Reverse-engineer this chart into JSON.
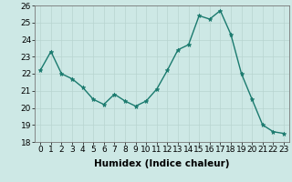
{
  "x": [
    0,
    1,
    2,
    3,
    4,
    5,
    6,
    7,
    8,
    9,
    10,
    11,
    12,
    13,
    14,
    15,
    16,
    17,
    18,
    19,
    20,
    21,
    22,
    23
  ],
  "y": [
    22.2,
    23.3,
    22.0,
    21.7,
    21.2,
    20.5,
    20.2,
    20.8,
    20.4,
    20.1,
    20.4,
    21.1,
    22.2,
    23.4,
    23.7,
    25.4,
    25.2,
    25.7,
    24.3,
    22.0,
    20.5,
    19.0,
    18.6,
    18.5
  ],
  "bg_color": "#cde8e5",
  "line_color": "#1a7a6e",
  "marker_color": "#1a7a6e",
  "grid_color_major": "#b8d4d0",
  "grid_color_minor": "#d0e6e3",
  "xlabel": "Humidex (Indice chaleur)",
  "ylim": [
    18,
    26
  ],
  "xlim": [
    -0.5,
    23.5
  ],
  "yticks": [
    18,
    19,
    20,
    21,
    22,
    23,
    24,
    25,
    26
  ],
  "xticks": [
    0,
    1,
    2,
    3,
    4,
    5,
    6,
    7,
    8,
    9,
    10,
    11,
    12,
    13,
    14,
    15,
    16,
    17,
    18,
    19,
    20,
    21,
    22,
    23
  ],
  "xlabel_fontsize": 7.5,
  "tick_fontsize": 6.5,
  "line_width": 1.0,
  "marker_size": 3.5
}
